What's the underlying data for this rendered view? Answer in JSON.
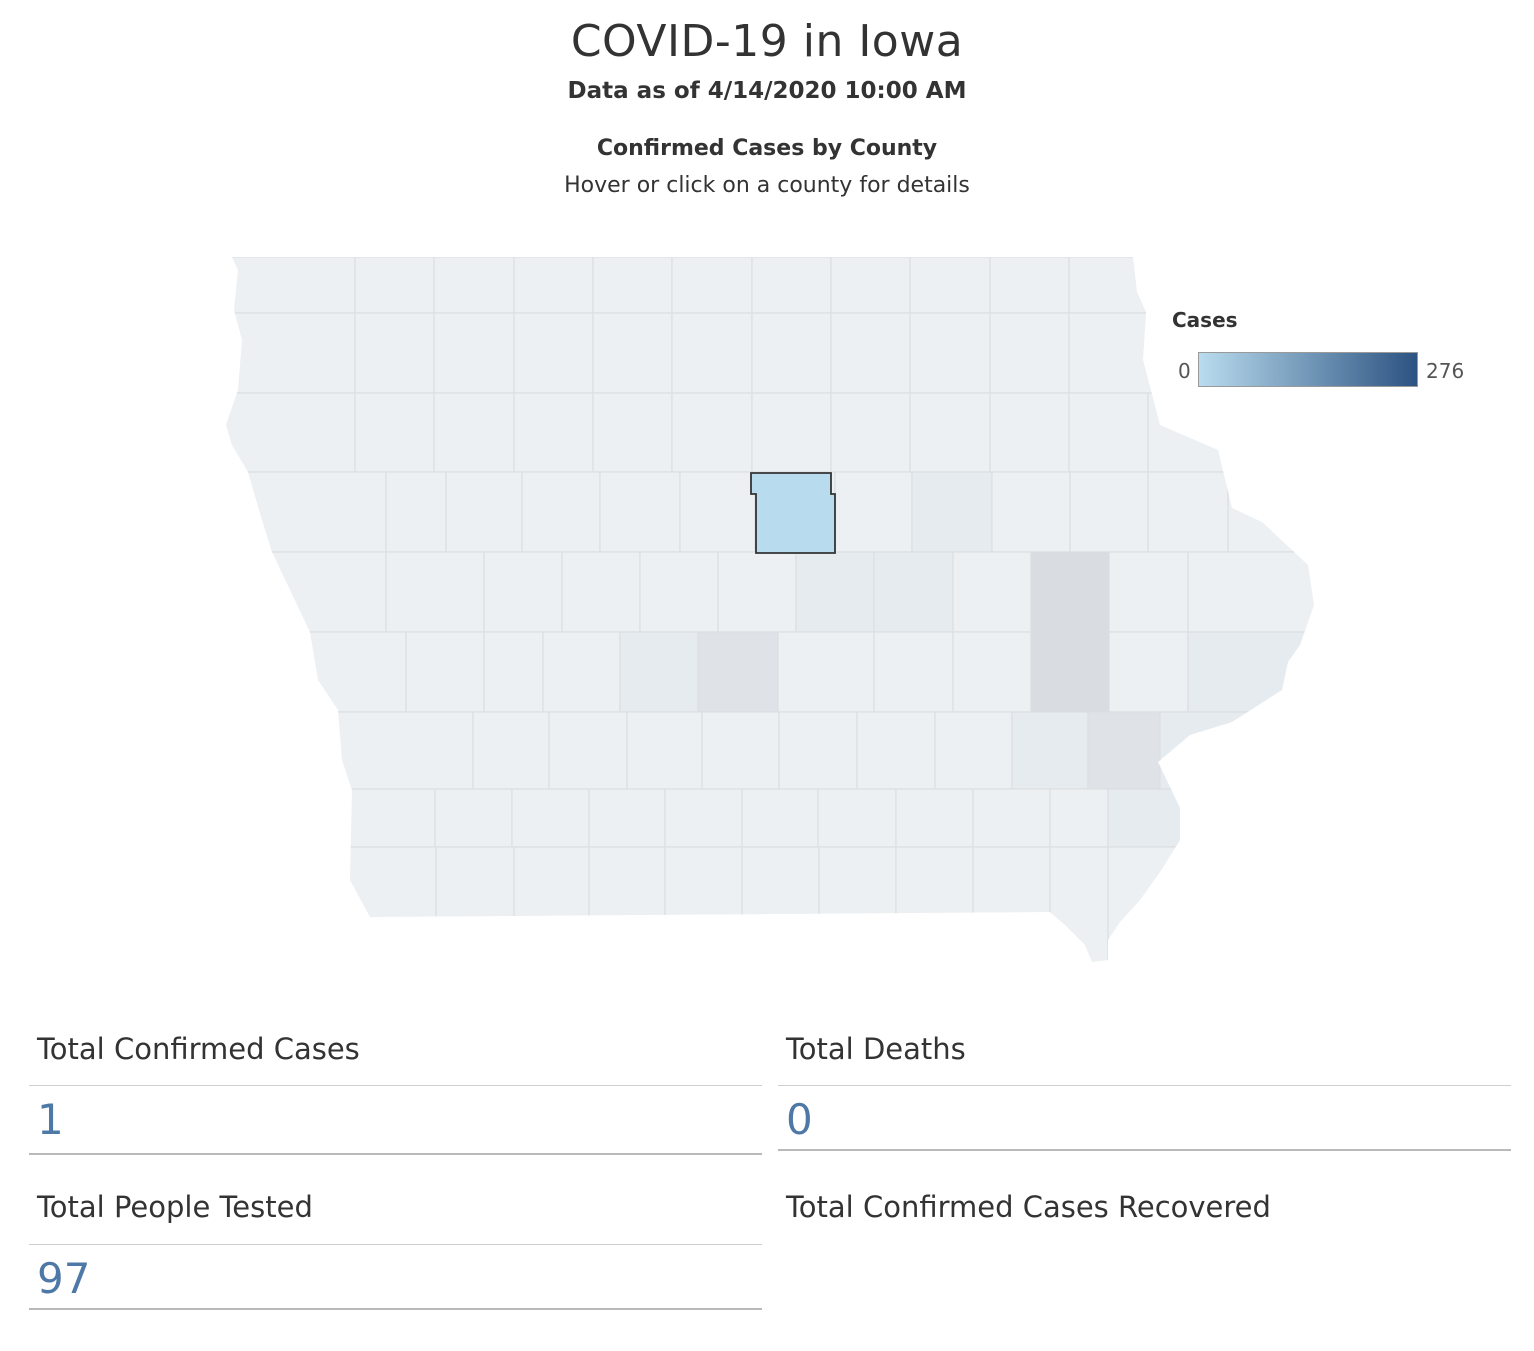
{
  "header": {
    "title": "COVID-19 in Iowa",
    "subtitle": "Data as of 4/14/2020 10:00 AM"
  },
  "map": {
    "heading": "Confirmed Cases by County",
    "hint": "Hover or click on a county for details",
    "legend": {
      "title": "Cases",
      "min_label": "0",
      "max_label": "276",
      "color_low": "#b9dcee",
      "color_high": "#2c5382"
    },
    "colors": {
      "base": "#ecf0f3",
      "border": "#dcdfe2",
      "shade_light": "#e6ebf0",
      "shade_mid": "#dfe3e8",
      "shade_dark": "#d9dde2",
      "selected": "#b8dcee",
      "selected_border": "#333333"
    }
  },
  "stats": {
    "total_confirmed_cases": {
      "label": "Total Confirmed Cases",
      "value": "1"
    },
    "total_deaths": {
      "label": "Total Deaths",
      "value": "0"
    },
    "total_people_tested": {
      "label": "Total People Tested",
      "value": "97"
    },
    "total_recovered": {
      "label": "Total Confirmed Cases Recovered",
      "value": ""
    }
  }
}
